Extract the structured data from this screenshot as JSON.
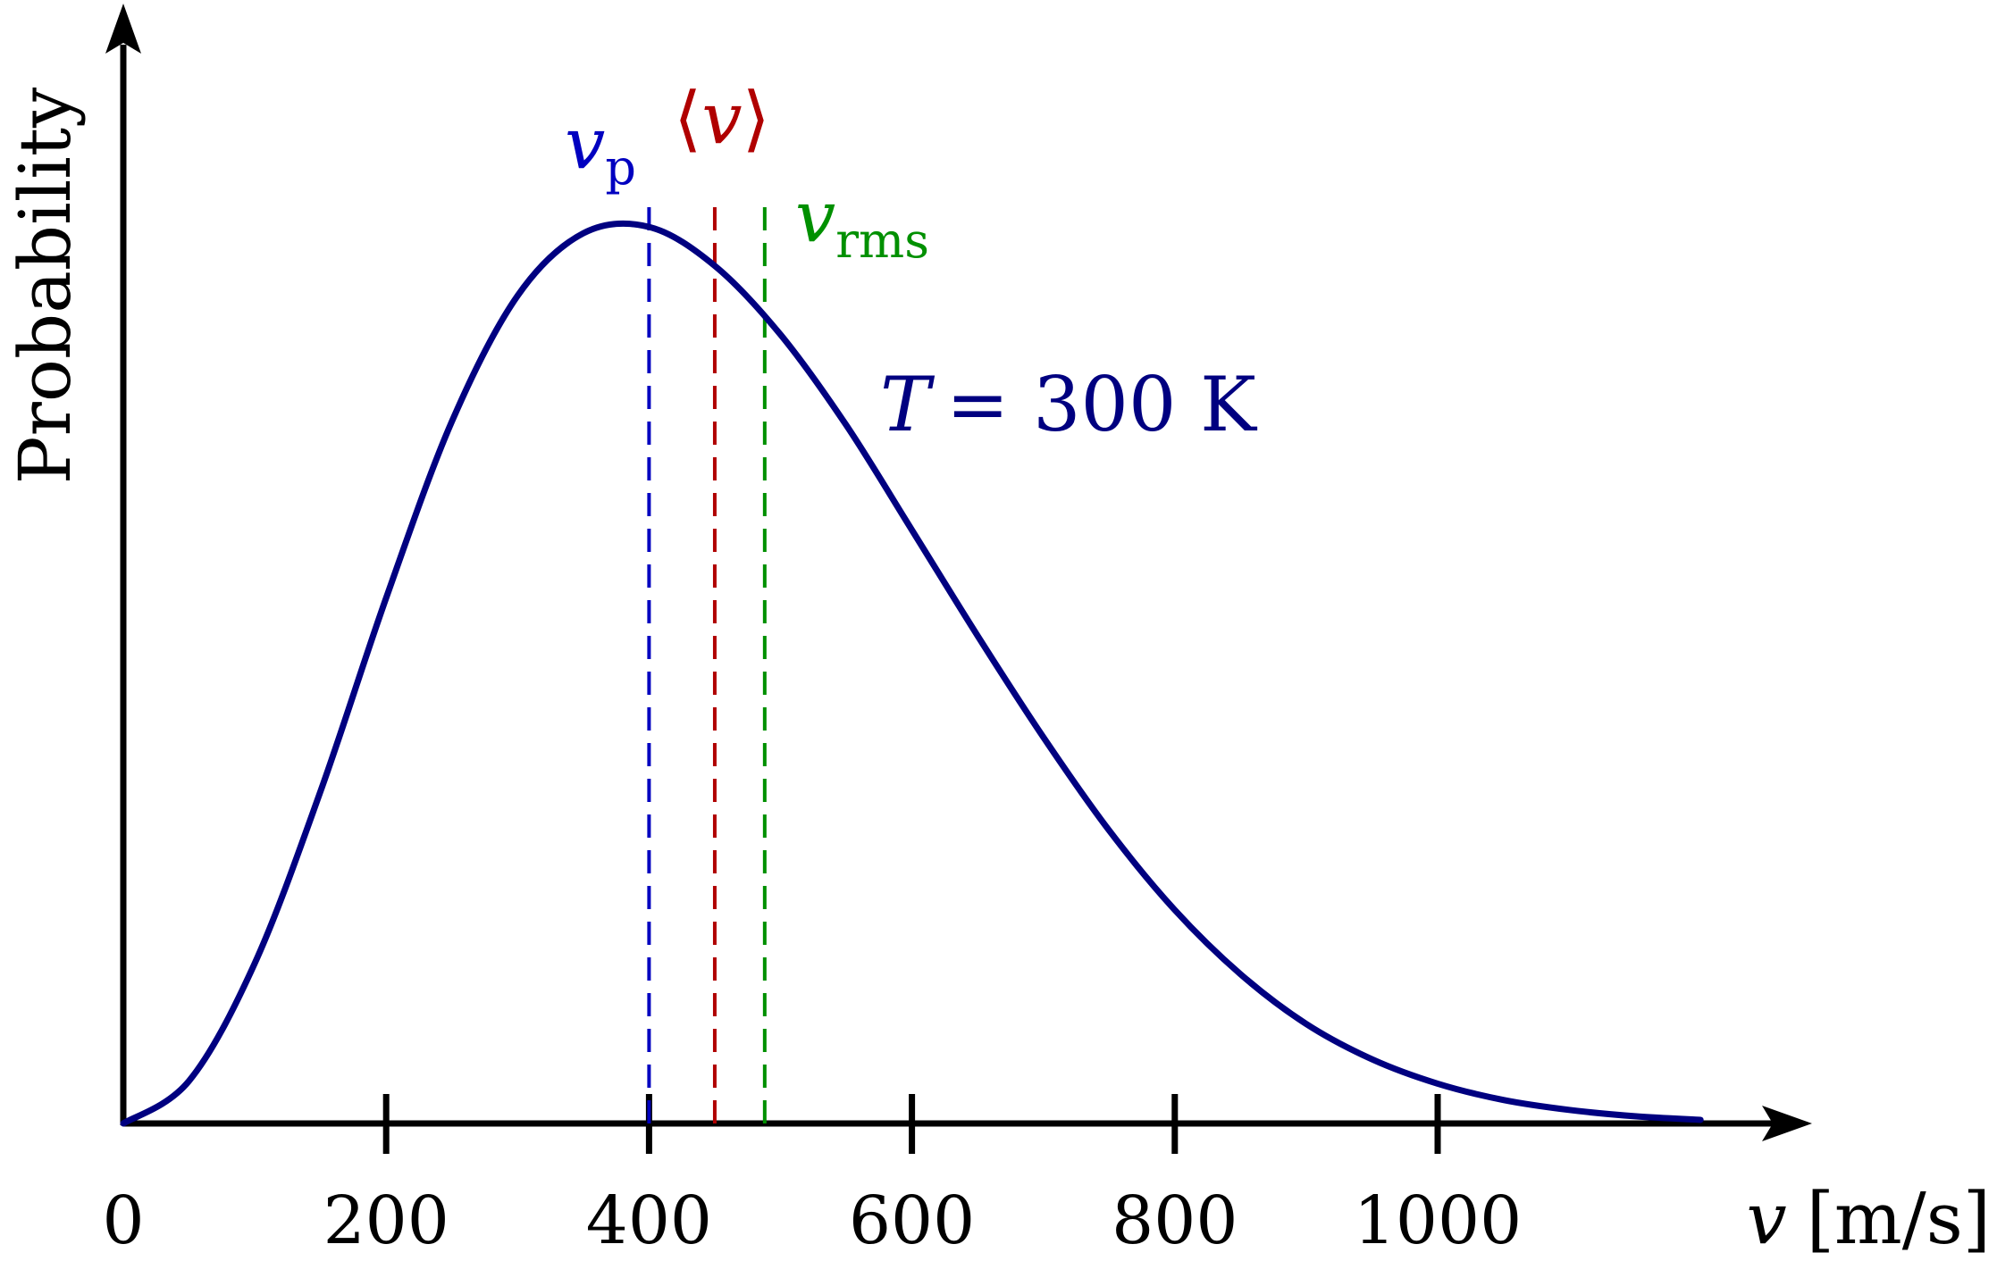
{
  "chart_data": {
    "type": "line",
    "title": "",
    "xlabel_var": "v",
    "xlabel_unit": "[m/s]",
    "ylabel": "Probability",
    "xlim": [
      0,
      1200
    ],
    "xticks": [
      0,
      200,
      400,
      600,
      800,
      1000
    ],
    "xtick_labels": [
      "0",
      "200",
      "400",
      "600",
      "800",
      "1000"
    ],
    "grid": false,
    "series": [
      {
        "name": "T = 300 K",
        "color": "#000080",
        "temperature_K": 300,
        "x": [
          0,
          50,
          100,
          150,
          200,
          250,
          300,
          350,
          400,
          450,
          500,
          550,
          600,
          650,
          700,
          750,
          800,
          850,
          900,
          950,
          1000,
          1050,
          1100,
          1150,
          1200
        ],
        "y": [
          0,
          0.047,
          0.177,
          0.367,
          0.581,
          0.776,
          0.915,
          0.984,
          0.991,
          0.948,
          0.872,
          0.772,
          0.656,
          0.539,
          0.427,
          0.324,
          0.236,
          0.165,
          0.11,
          0.071,
          0.044,
          0.026,
          0.015,
          0.008,
          0.004
        ]
      }
    ],
    "markers": [
      {
        "id": "vp",
        "base": "v",
        "sub": "p",
        "x": 400,
        "color": "#0000c0"
      },
      {
        "id": "vavg",
        "base": "v",
        "x": 450,
        "color": "#b00000",
        "bracketed": true,
        "bracket_open": "⟨",
        "bracket_close": "⟩"
      },
      {
        "id": "vrms",
        "base": "v",
        "sub": "rms",
        "x": 488,
        "color": "#009000"
      }
    ],
    "temperature_label": {
      "var": "T",
      "rest": "= 300 K",
      "color": "#000080"
    }
  }
}
